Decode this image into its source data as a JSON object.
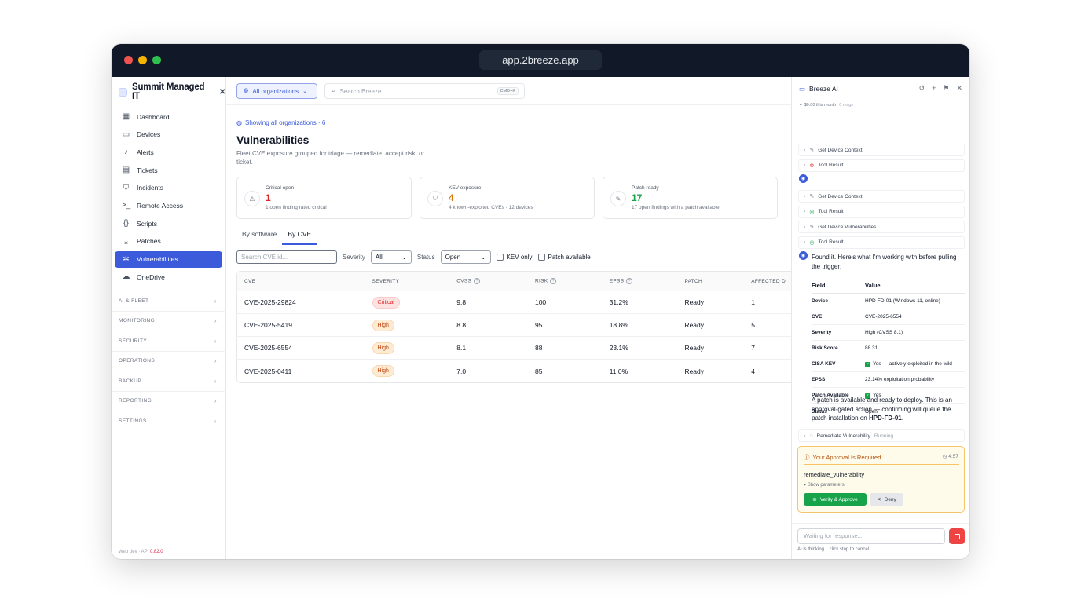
{
  "browser": {
    "url": "app.2breeze.app"
  },
  "sidebar": {
    "org_name": "Summit Managed IT",
    "items": [
      {
        "label": "Dashboard",
        "icon": "grid-icon"
      },
      {
        "label": "Devices",
        "icon": "monitor-icon"
      },
      {
        "label": "Alerts",
        "icon": "bell-icon"
      },
      {
        "label": "Tickets",
        "icon": "ticket-icon"
      },
      {
        "label": "Incidents",
        "icon": "shield-icon"
      },
      {
        "label": "Remote Access",
        "icon": "terminal-icon"
      },
      {
        "label": "Scripts",
        "icon": "code-icon"
      },
      {
        "label": "Patches",
        "icon": "download-icon"
      },
      {
        "label": "Vulnerabilities",
        "icon": "bug-icon",
        "active": true
      },
      {
        "label": "OneDrive",
        "icon": "cloud-icon"
      }
    ],
    "groups": [
      "AI & FLEET",
      "MONITORING",
      "SECURITY",
      "OPERATIONS",
      "BACKUP",
      "REPORTING",
      "SETTINGS"
    ],
    "version_prefix": "Web dev · API",
    "version": "0.82.0"
  },
  "topbar": {
    "org_selector": "All organizations",
    "search_placeholder": "Search Breeze",
    "shortcut": "CMD+K"
  },
  "page": {
    "showing": "Showing all organizations · 6",
    "title": "Vulnerabilities",
    "subtitle": "Fleet CVE exposure grouped for triage — remediate, accept risk, or ticket.",
    "cards": [
      {
        "label": "Critical open",
        "value": "1",
        "desc": "1 open finding rated critical",
        "color": "#dc2626"
      },
      {
        "label": "KEV exposure",
        "value": "4",
        "desc": "4 known-exploited CVEs · 12 devices",
        "color": "#d97706"
      },
      {
        "label": "Patch ready",
        "value": "17",
        "desc": "17 open findings with a patch available",
        "color": "#16a34a"
      }
    ],
    "tabs": [
      "By software",
      "By CVE"
    ],
    "filters": {
      "search_placeholder": "Search CVE id...",
      "severity_label": "Severity",
      "severity_value": "All",
      "status_label": "Status",
      "status_value": "Open",
      "kev_label": "KEV only",
      "patch_label": "Patch available"
    },
    "table": {
      "headers": [
        "CVE",
        "SEVERITY",
        "CVSS",
        "RISK",
        "EPSS",
        "PATCH",
        "AFFECTED D"
      ],
      "rows": [
        {
          "cve": "CVE-2025-29824",
          "severity": "Critical",
          "cvss": "9.8",
          "risk": "100",
          "epss": "31.2%",
          "patch": "Ready",
          "affected": "1"
        },
        {
          "cve": "CVE-2025-5419",
          "severity": "High",
          "cvss": "8.8",
          "risk": "95",
          "epss": "18.8%",
          "patch": "Ready",
          "affected": "5"
        },
        {
          "cve": "CVE-2025-6554",
          "severity": "High",
          "cvss": "8.1",
          "risk": "88",
          "epss": "23.1%",
          "patch": "Ready",
          "affected": "7"
        },
        {
          "cve": "CVE-2025-0411",
          "severity": "High",
          "cvss": "7.0",
          "risk": "85",
          "epss": "11.0%",
          "patch": "Ready",
          "affected": "4"
        }
      ]
    }
  },
  "ai": {
    "title": "Breeze AI",
    "cost": "$0.00 this month",
    "msgs": "0 msgs",
    "tools_top": [
      {
        "label": "Get Device Context",
        "status": "wrench"
      },
      {
        "label": "Tool Result",
        "status": "error"
      }
    ],
    "tools_mid": [
      {
        "label": "Get Device Context",
        "status": "wrench"
      },
      {
        "label": "Tool Result",
        "status": "ok"
      },
      {
        "label": "Get Device Vulnerabilities",
        "status": "wrench"
      },
      {
        "label": "Tool Result",
        "status": "ok"
      }
    ],
    "message": "Found it. Here's what I'm working with before pulling the trigger:",
    "kv_header": {
      "field": "Field",
      "value": "Value"
    },
    "kv": [
      {
        "field": "Device",
        "value": "HPD-FD-01 (Windows 11, online)"
      },
      {
        "field": "CVE",
        "value": "CVE-2025-6554"
      },
      {
        "field": "Severity",
        "value": "High (CVSS 8.1)"
      },
      {
        "field": "Risk Score",
        "value": "88.31"
      },
      {
        "field": "CISA KEV",
        "value": "Yes — actively exploited in the wild",
        "check": true
      },
      {
        "field": "EPSS",
        "value": "23.14% exploitation probability"
      },
      {
        "field": "Patch Available",
        "value": "Yes",
        "check": true
      },
      {
        "field": "Status",
        "value": "Open"
      }
    ],
    "closing_a": "A patch is available and ready to deploy. This is an approval-gated action — confirming will queue the patch installation on ",
    "closing_device": "HPD-FD-01",
    "closing_end": ".",
    "remediate": {
      "label": "Remediate Vulnerability",
      "status": "Running..."
    },
    "approval": {
      "title": "Your Approval Is Required",
      "time": "4:57",
      "function": "remediate_vulnerability",
      "params": "Show parameters",
      "approve": "Verify & Approve",
      "deny": "Deny"
    },
    "input_placeholder": "Waiting for response...",
    "thinking": "AI is thinking... click stop to cancel"
  }
}
